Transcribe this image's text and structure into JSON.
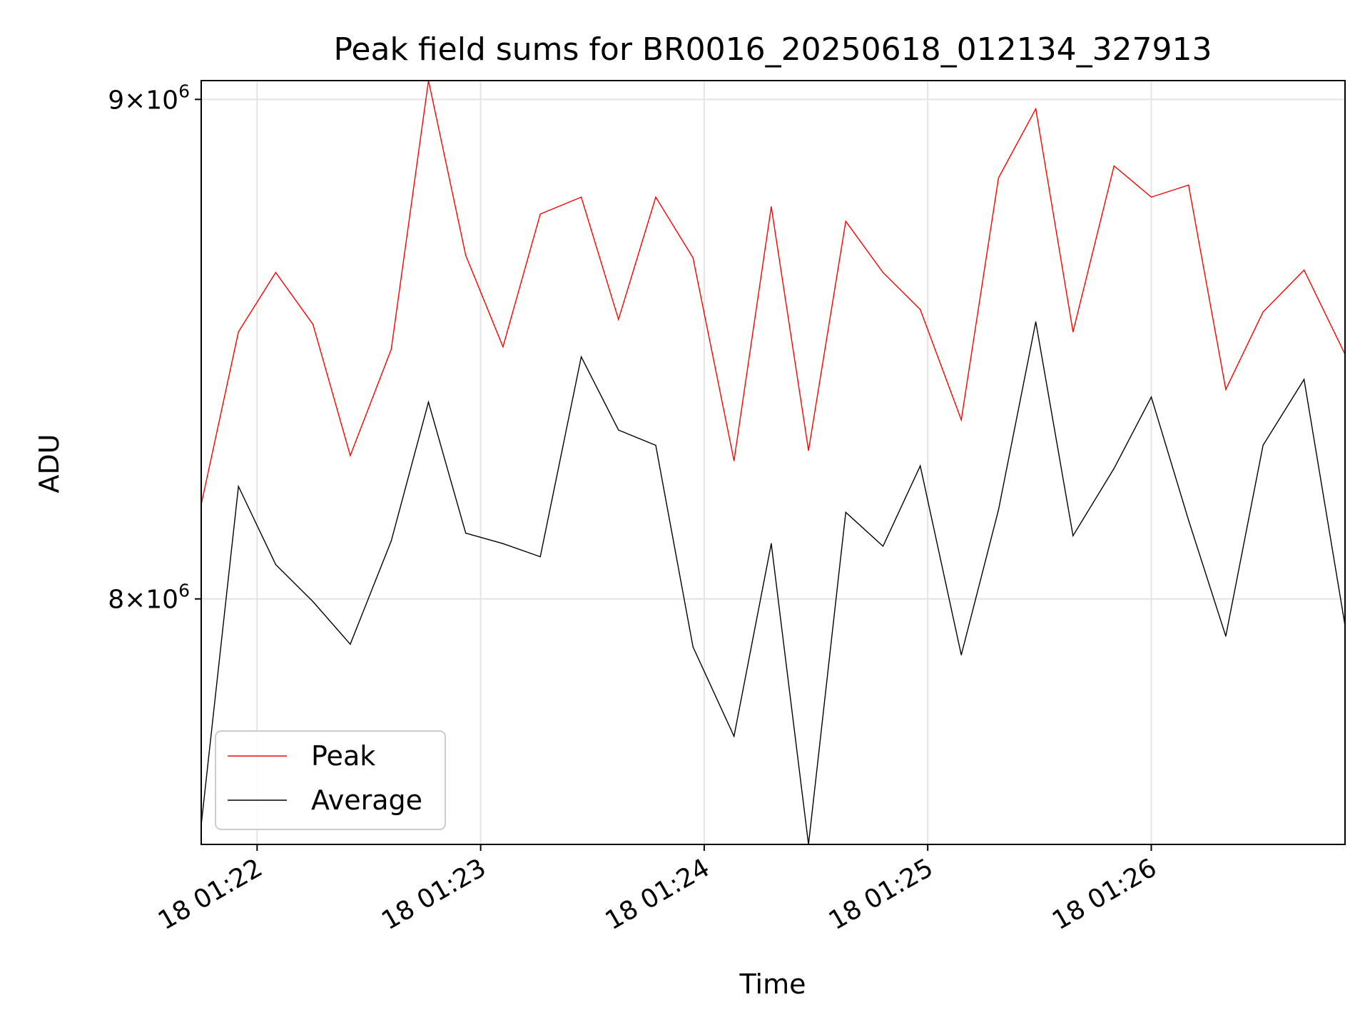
{
  "chart_data": {
    "type": "line",
    "title": "Peak field sums for BR0016_20250618_012134_327913",
    "xlabel": "Time",
    "ylabel": "ADU",
    "y_scale": "log",
    "ylim": [
      7550000,
      9040000
    ],
    "y_ticks": [
      {
        "value": 8000000,
        "mantissa": "8",
        "base": "10",
        "exp": "6"
      },
      {
        "value": 9000000,
        "mantissa": "9",
        "base": "10",
        "exp": "6"
      }
    ],
    "xlim": [
      "01:21:45",
      "01:26:52"
    ],
    "x_ticks": [
      {
        "time": "01:22:00",
        "label": "18 01:22"
      },
      {
        "time": "01:23:00",
        "label": "18 01:23"
      },
      {
        "time": "01:24:00",
        "label": "18 01:24"
      },
      {
        "time": "01:25:00",
        "label": "18 01:25"
      },
      {
        "time": "01:26:00",
        "label": "18 01:26"
      }
    ],
    "x": [
      "01:21:45",
      "01:21:55",
      "01:22:05",
      "01:22:15",
      "01:22:25",
      "01:22:36",
      "01:22:46",
      "01:22:56",
      "01:23:06",
      "01:23:16",
      "01:23:27",
      "01:23:37",
      "01:23:47",
      "01:23:57",
      "01:24:08",
      "01:24:18",
      "01:24:28",
      "01:24:38",
      "01:24:48",
      "01:24:58",
      "01:25:09",
      "01:25:19",
      "01:25:29",
      "01:25:39",
      "01:25:50",
      "01:26:00",
      "01:26:10",
      "01:26:20",
      "01:26:30",
      "01:26:41",
      "01:26:52"
    ],
    "series": [
      {
        "name": "Peak",
        "color": "#ff0000",
        "values": [
          8180000,
          8520000,
          8640000,
          8535000,
          8275000,
          8485000,
          9040000,
          8675000,
          8490000,
          8760000,
          8795000,
          8545000,
          8795000,
          8670000,
          8265000,
          8775000,
          8285000,
          8745000,
          8640000,
          8565000,
          8345000,
          8835000,
          8980000,
          8520000,
          8860000,
          8795000,
          8820000,
          8405000,
          8560000,
          8645000,
          8475000
        ]
      },
      {
        "name": "Average",
        "color": "#000000",
        "values": [
          7585000,
          8215000,
          8065000,
          7995000,
          7915000,
          8110000,
          8380000,
          8125000,
          8105000,
          8080000,
          8470000,
          8325000,
          8295000,
          7910000,
          7745000,
          8105000,
          7550000,
          8165000,
          8100000,
          8255000,
          7895000,
          8170000,
          8540000,
          8120000,
          8250000,
          8390000,
          8150000,
          7930000,
          8295000,
          8425000,
          7950000
        ]
      }
    ],
    "legend": {
      "placement": "lower-left",
      "items": [
        "Peak",
        "Average"
      ]
    },
    "grid": true
  }
}
